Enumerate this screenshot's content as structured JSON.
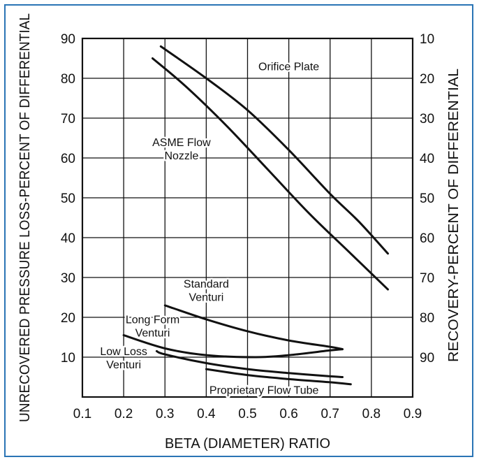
{
  "chart_data": {
    "type": "line",
    "title": "",
    "xlabel": "BETA (DIAMETER) RATIO",
    "ylabel": "UNRECOVERED PRESSURE LOSS-PERCENT OF DIFFERENTIAL",
    "ylabel_right": "RECOVERY-PERCENT OF DIFFERENTIAL",
    "xlim": [
      0.1,
      0.9
    ],
    "ylim": [
      0,
      90
    ],
    "x_ticks": [
      "0.1",
      "0.2",
      "0.3",
      "0.4",
      "0.5",
      "0.6",
      "0.7",
      "0.8",
      "0.9"
    ],
    "y_ticks": [
      "10",
      "20",
      "30",
      "40",
      "50",
      "60",
      "70",
      "80",
      "90"
    ],
    "y_right_ticks": [
      "90",
      "80",
      "70",
      "60",
      "50",
      "40",
      "30",
      "20",
      "10"
    ],
    "grid": true,
    "colors": {
      "line": "#111111",
      "grid": "#111111",
      "border": "#2a74b5"
    },
    "series": [
      {
        "name": "Orifice Plate",
        "label_lines": [
          "Orifice Plate"
        ],
        "label_at": [
          0.6,
          82
        ],
        "x": [
          0.29,
          0.4,
          0.5,
          0.6,
          0.7,
          0.77,
          0.84
        ],
        "y": [
          88,
          80,
          72,
          62,
          51,
          44,
          36
        ]
      },
      {
        "name": "ASME Flow Nozzle",
        "label_lines": [
          "ASME Flow",
          "Nozzle"
        ],
        "label_at": [
          0.34,
          63
        ],
        "x": [
          0.27,
          0.35,
          0.45,
          0.55,
          0.65,
          0.75,
          0.84
        ],
        "y": [
          85,
          78,
          68,
          57,
          46,
          36,
          27
        ]
      },
      {
        "name": "Standard Venturi",
        "label_lines": [
          "Standard",
          "Venturi"
        ],
        "label_at": [
          0.4,
          27.5
        ],
        "x": [
          0.3,
          0.4,
          0.5,
          0.6,
          0.7,
          0.73
        ],
        "y": [
          23,
          19.5,
          16.5,
          14.2,
          12.6,
          12
        ]
      },
      {
        "name": "Long Form Venturi",
        "label_lines": [
          "Long Form",
          "Venturi"
        ],
        "label_at": [
          0.27,
          18.5
        ],
        "x": [
          0.2,
          0.3,
          0.4,
          0.52,
          0.6,
          0.7,
          0.73
        ],
        "y": [
          15.5,
          12.2,
          10.5,
          10,
          10.5,
          11.7,
          12
        ]
      },
      {
        "name": "Low Loss Venturi",
        "label_lines": [
          "Low Loss",
          "Venturi"
        ],
        "label_at": [
          0.2,
          10.5
        ],
        "x": [
          0.28,
          0.3,
          0.4,
          0.5,
          0.6,
          0.7,
          0.73
        ],
        "y": [
          11.5,
          10.7,
          8.5,
          7,
          6,
          5.2,
          5
        ]
      },
      {
        "name": "Proprietary Flow Tube",
        "label_lines": [
          "Proprietary Flow Tube"
        ],
        "label_at": [
          0.54,
          0.8
        ],
        "x": [
          0.4,
          0.5,
          0.6,
          0.7,
          0.75
        ],
        "y": [
          7,
          5.5,
          4.5,
          3.7,
          3.2
        ]
      }
    ]
  }
}
